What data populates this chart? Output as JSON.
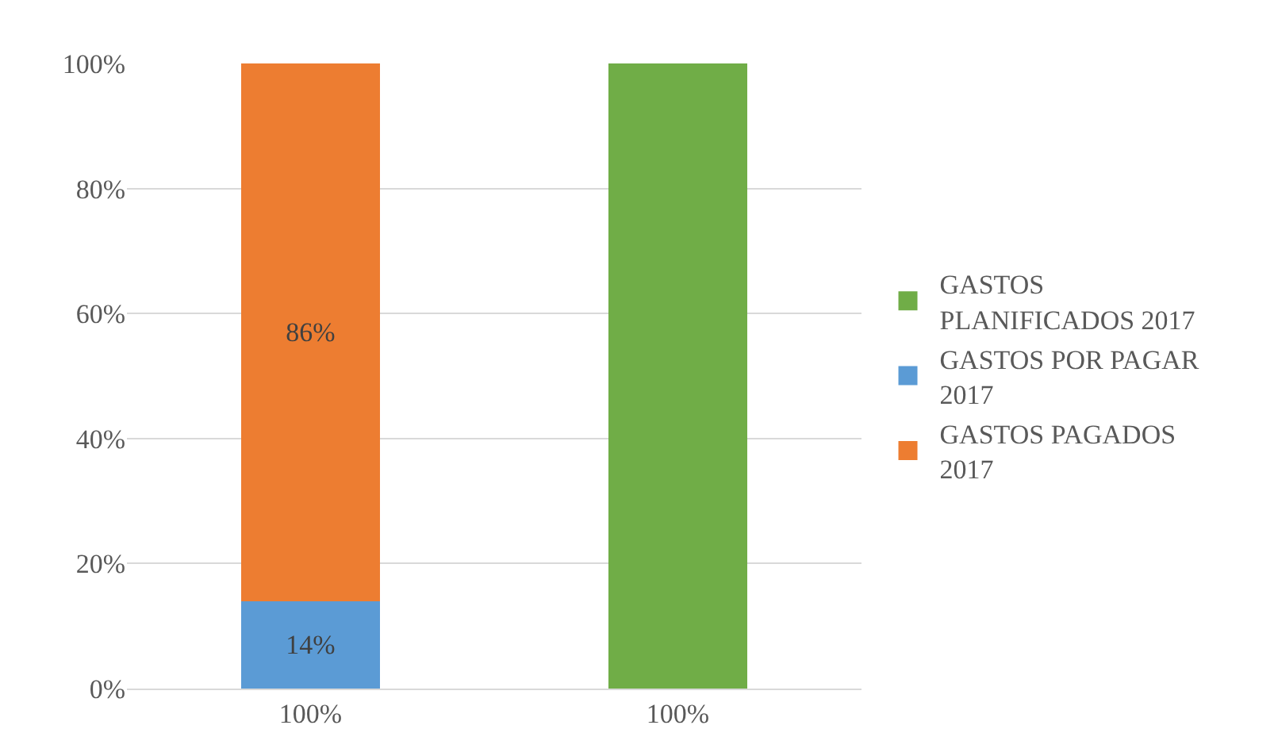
{
  "chart_data": {
    "type": "bar",
    "stacked": true,
    "categories": [
      "100%",
      "100%"
    ],
    "series": [
      {
        "name": "GASTOS POR PAGAR 2017",
        "color": "#5b9bd5",
        "values": [
          14,
          null
        ],
        "value_labels": [
          "14%",
          null
        ]
      },
      {
        "name": "GASTOS PAGADOS 2017",
        "color": "#ed7d31",
        "values": [
          86,
          null
        ],
        "value_labels": [
          "86%",
          null
        ]
      },
      {
        "name": "GASTOS PLANIFICADOS 2017",
        "color": "#70ad47",
        "values": [
          null,
          100
        ]
      }
    ],
    "ylim": [
      0,
      100
    ],
    "yticks": [
      {
        "value": 0,
        "label": "0%"
      },
      {
        "value": 20,
        "label": "20%"
      },
      {
        "value": 40,
        "label": "40%"
      },
      {
        "value": 60,
        "label": "60%"
      },
      {
        "value": 80,
        "label": "80%"
      },
      {
        "value": 100,
        "label": "100%"
      }
    ],
    "grid": "y",
    "legend": "right"
  }
}
